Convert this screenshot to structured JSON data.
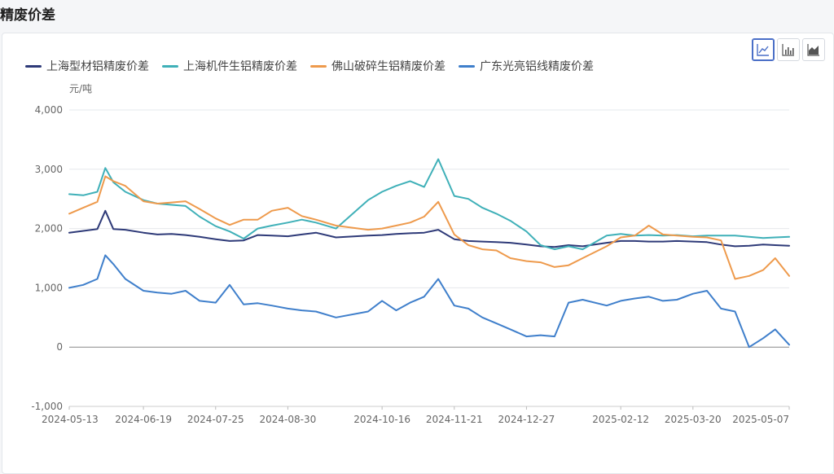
{
  "page": {
    "title": "精废价差"
  },
  "toolbar": {
    "buttons": [
      {
        "name": "line-chart-button",
        "icon": "line-chart-icon",
        "active": true
      },
      {
        "name": "bar-chart-button",
        "icon": "bar-chart-icon",
        "active": false
      },
      {
        "name": "area-chart-button",
        "icon": "area-chart-icon",
        "active": false
      }
    ]
  },
  "chart_data": {
    "type": "line",
    "ylabel": "元/吨",
    "ylim": [
      -1000,
      4000
    ],
    "yticks": [
      -1000,
      0,
      1000,
      2000,
      3000,
      4000
    ],
    "ytick_labels": [
      "-1,000",
      "0",
      "1,000",
      "2,000",
      "3,000",
      "4,000"
    ],
    "xlim": [
      "2024-05-13",
      "2025-05-07"
    ],
    "xtick_labels": [
      "2024-05-13",
      "2024-06-19",
      "2024-07-25",
      "2024-08-30",
      "2024-10-16",
      "2024-11-21",
      "2024-12-27",
      "2025-02-12",
      "2025-03-20",
      "2025-05-07"
    ],
    "grid": "horizontal",
    "legend_position": "top-left",
    "x": [
      "2024-05-13",
      "2024-05-20",
      "2024-05-27",
      "2024-05-31",
      "2024-06-04",
      "2024-06-10",
      "2024-06-19",
      "2024-06-26",
      "2024-07-03",
      "2024-07-10",
      "2024-07-17",
      "2024-07-25",
      "2024-08-01",
      "2024-08-08",
      "2024-08-15",
      "2024-08-22",
      "2024-08-30",
      "2024-09-06",
      "2024-09-13",
      "2024-09-23",
      "2024-10-09",
      "2024-10-16",
      "2024-10-23",
      "2024-10-30",
      "2024-11-06",
      "2024-11-13",
      "2024-11-21",
      "2024-11-28",
      "2024-12-05",
      "2024-12-12",
      "2024-12-19",
      "2024-12-27",
      "2025-01-03",
      "2025-01-10",
      "2025-01-17",
      "2025-01-24",
      "2025-02-05",
      "2025-02-12",
      "2025-02-19",
      "2025-02-26",
      "2025-03-05",
      "2025-03-12",
      "2025-03-20",
      "2025-03-27",
      "2025-04-03",
      "2025-04-10",
      "2025-04-17",
      "2025-04-24",
      "2025-04-30",
      "2025-05-07"
    ],
    "series": [
      {
        "name": "上海型材铝精废价差",
        "color": "#2e3a78",
        "values": [
          1930,
          1960,
          1990,
          2300,
          1990,
          1980,
          1930,
          1900,
          1910,
          1890,
          1860,
          1820,
          1790,
          1800,
          1890,
          1880,
          1870,
          1900,
          1930,
          1850,
          1880,
          1890,
          1910,
          1920,
          1930,
          1980,
          1820,
          1790,
          1780,
          1770,
          1760,
          1730,
          1700,
          1690,
          1720,
          1700,
          1760,
          1790,
          1790,
          1780,
          1780,
          1790,
          1780,
          1770,
          1730,
          1700,
          1710,
          1730,
          1720,
          1710
        ]
      },
      {
        "name": "上海机件生铝精废价差",
        "color": "#3fb0b8",
        "values": [
          2580,
          2560,
          2620,
          3020,
          2780,
          2620,
          2480,
          2420,
          2400,
          2380,
          2200,
          2040,
          1950,
          1830,
          2000,
          2050,
          2100,
          2150,
          2100,
          2000,
          2480,
          2620,
          2720,
          2800,
          2700,
          3170,
          2550,
          2500,
          2350,
          2250,
          2130,
          1950,
          1720,
          1650,
          1700,
          1650,
          1880,
          1910,
          1880,
          1890,
          1880,
          1890,
          1870,
          1880,
          1880,
          1880,
          1860,
          1840,
          1850,
          1860
        ]
      },
      {
        "name": "佛山破碎生铝精废价差",
        "color": "#ee9a4c",
        "values": [
          2250,
          2350,
          2450,
          2880,
          2800,
          2720,
          2460,
          2420,
          2440,
          2460,
          2330,
          2170,
          2060,
          2150,
          2150,
          2300,
          2350,
          2210,
          2150,
          2050,
          1980,
          2000,
          2050,
          2100,
          2200,
          2450,
          1900,
          1720,
          1650,
          1630,
          1500,
          1450,
          1430,
          1350,
          1380,
          1500,
          1700,
          1850,
          1880,
          2050,
          1900,
          1880,
          1860,
          1850,
          1800,
          1150,
          1200,
          1300,
          1500,
          1200
        ]
      },
      {
        "name": "广东光亮铝线精废价差",
        "color": "#3f7fcb",
        "values": [
          1000,
          1050,
          1150,
          1550,
          1400,
          1150,
          950,
          920,
          900,
          950,
          780,
          750,
          1050,
          720,
          740,
          700,
          650,
          620,
          600,
          500,
          600,
          780,
          620,
          750,
          850,
          1150,
          700,
          650,
          500,
          400,
          300,
          180,
          200,
          180,
          750,
          800,
          700,
          780,
          820,
          850,
          780,
          800,
          900,
          950,
          650,
          600,
          0,
          150,
          300,
          40
        ]
      }
    ]
  }
}
